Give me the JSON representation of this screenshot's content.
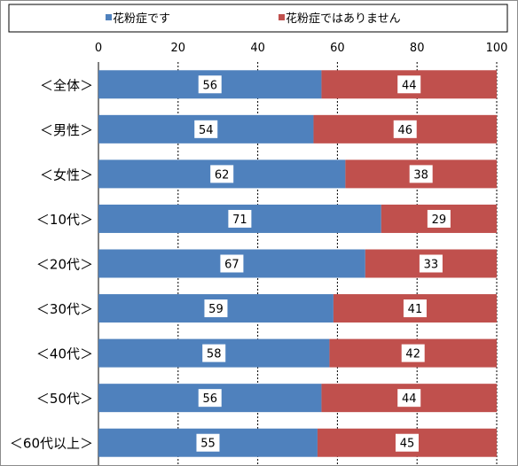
{
  "chart_data": {
    "type": "bar",
    "orientation": "horizontal",
    "stacked": true,
    "categories": [
      "＜全体＞",
      "＜男性＞",
      "＜女性＞",
      "＜10代＞",
      "＜20代＞",
      "＜30代＞",
      "＜40代＞",
      "＜50代＞",
      "＜60代以上＞"
    ],
    "series": [
      {
        "name": "花粉症です",
        "color": "#4f81bd",
        "values": [
          56,
          54,
          62,
          71,
          67,
          59,
          58,
          56,
          55
        ]
      },
      {
        "name": "花粉症ではありません",
        "color": "#c0504d",
        "values": [
          44,
          46,
          38,
          29,
          33,
          41,
          42,
          44,
          45
        ]
      }
    ],
    "xlim": [
      0,
      100
    ],
    "xticks": [
      0,
      20,
      40,
      60,
      80,
      100
    ],
    "grid": true,
    "legend": "top",
    "data_labels": true
  }
}
